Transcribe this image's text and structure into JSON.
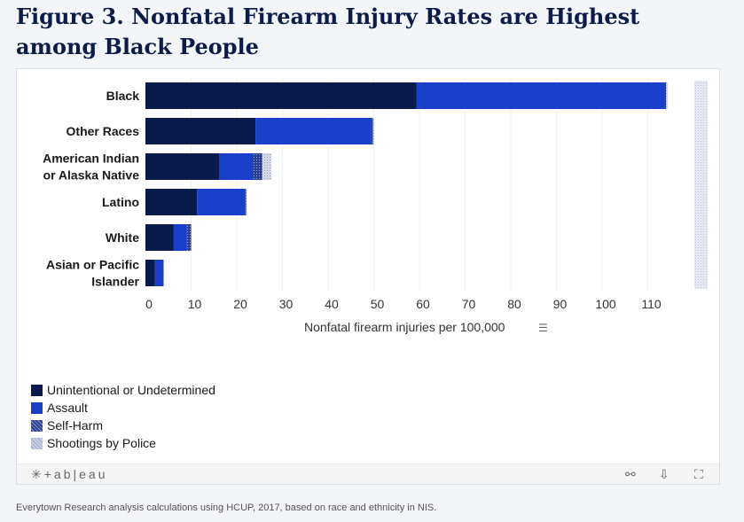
{
  "title": "Figure 3. Nonfatal Firearm Injury Rates are Highest among Black People",
  "chart_data": {
    "type": "bar",
    "orientation": "horizontal",
    "stacked": true,
    "categories": [
      "Black",
      "Other Races",
      "American Indian or Alaska Native",
      "Latino",
      "White",
      "Asian or Pacific Islander"
    ],
    "category_lines": [
      [
        "Black"
      ],
      [
        "Other Races"
      ],
      [
        "American Indian",
        "or Alaska Native"
      ],
      [
        "Latino"
      ],
      [
        "White"
      ],
      [
        "Asian or Pacific",
        "Islander"
      ]
    ],
    "series": [
      {
        "name": "Unintentional or Undetermined",
        "color": "#0a1a4a",
        "values": [
          59.4,
          24.1,
          16.2,
          11.3,
          6.2,
          2.1
        ]
      },
      {
        "name": "Assault",
        "color": "#1a3fc9",
        "values": [
          54.2,
          25.4,
          7.4,
          10.6,
          2.9,
          1.8
        ]
      },
      {
        "name": "Self-Harm",
        "color": "#5a6fb0",
        "values": [
          0.4,
          0.3,
          2.0,
          0.2,
          0.9,
          0.1
        ]
      },
      {
        "name": "Shootings by Police",
        "color": "#c3cbe0",
        "values": [
          0.4,
          0.3,
          2.0,
          0.1,
          0.1,
          0.1
        ]
      }
    ],
    "xlabel": "Nonfatal firearm injuries per 100,000",
    "xticks": [
      0,
      10,
      20,
      30,
      40,
      50,
      60,
      70,
      80,
      90,
      100,
      110
    ],
    "xlim": [
      0,
      123
    ],
    "grid": true,
    "legend": "bottom-left"
  },
  "footer": {
    "logo": "+ab|eau",
    "icons": [
      "share-icon",
      "download-icon",
      "fullscreen-icon"
    ]
  },
  "source": "Everytown Research analysis calculations using HCUP, 2017, based on race and ethnicity in NIS."
}
